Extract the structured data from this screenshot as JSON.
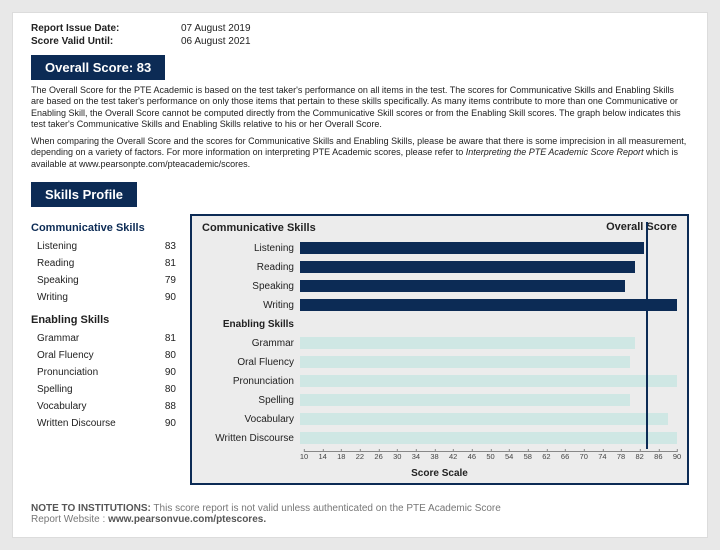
{
  "colors": {
    "primary": "#0c2b55",
    "header_bg": "#0c2b55",
    "chart_border": "#0c2b55",
    "comm_bar": "#0c2b55",
    "enable_bar": "#cfe7e4",
    "overall_line": "#0c2b55",
    "comm_text": "#0c2b55"
  },
  "meta": {
    "issue_label": "Report Issue Date:",
    "issue_value": "07 August 2019",
    "valid_label": "Score Valid Until:",
    "valid_value": "06 August 2021"
  },
  "overall": {
    "header_prefix": "Overall Score:",
    "score": 83
  },
  "paragraphs": {
    "p1": "The Overall Score for the PTE Academic is based on the test taker's performance on all items in the test.  The scores for Communicative Skills and Enabling Skills are based on the test taker's performance on only those items that pertain to these skills specifically.  As many items contribute to more than one Communicative or Enabling Skill, the Overall Score cannot be computed directly from the Communicative Skill scores or from the Enabling Skill scores.  The graph below indicates this test taker's Communicative Skills and Enabling Skills relative to his or her Overall Score.",
    "p2a": "When comparing the Overall Score and the scores for Communicative Skills and Enabling Skills, please be aware that there is some imprecision in all measurement, depending on a variety of factors.  For more information on interpreting PTE Academic scores, please refer to ",
    "p2b_italic": "Interpreting the PTE Academic Score Report",
    "p2c": " which is available at www.pearsonpte.com/pteacademic/scores."
  },
  "skills_header": "Skills Profile",
  "skills": {
    "comm_title": "Communicative Skills",
    "enable_title": "Enabling Skills",
    "communicative": [
      {
        "label": "Listening",
        "score": 83
      },
      {
        "label": "Reading",
        "score": 81
      },
      {
        "label": "Speaking",
        "score": 79
      },
      {
        "label": "Writing",
        "score": 90
      }
    ],
    "enabling": [
      {
        "label": "Grammar",
        "score": 81
      },
      {
        "label": "Oral Fluency",
        "score": 80
      },
      {
        "label": "Pronunciation",
        "score": 90
      },
      {
        "label": "Spelling",
        "score": 80
      },
      {
        "label": "Vocabulary",
        "score": 88
      },
      {
        "label": "Written Discourse",
        "score": 90
      }
    ]
  },
  "chart": {
    "title_left": "Communicative Skills",
    "title_right": "Overall Score",
    "enable_head": "Enabling Skills",
    "axis_title": "Score Scale",
    "scale_min": 10,
    "scale_max": 90,
    "tick_step": 4
  },
  "footer": {
    "note_label": "NOTE TO INSTITUTIONS:",
    "note_text": " This score report is not valid unless authenticated on the PTE Academic Score",
    "website_label": "Report Website :  ",
    "website_value": "www.pearsonvue.com/ptescores."
  }
}
